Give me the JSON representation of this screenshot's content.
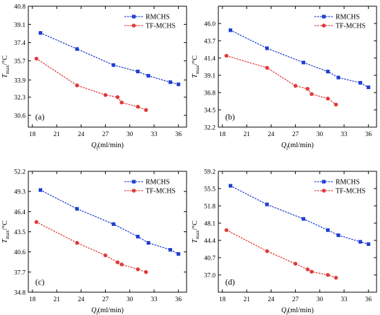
{
  "colors": {
    "rmchs": "#1f3fd1",
    "tf": "#e03a3a",
    "axis": "#000000"
  },
  "chart_data": [
    {
      "type": "line",
      "panel_label": "(a)",
      "xlabel_main": "Q",
      "xlabel_sub": "f",
      "xlabel_unit": "(ml/min)",
      "ylabel_main": "T",
      "ylabel_sub": "max",
      "ylabel_unit": "/°C",
      "xlim": [
        17.5,
        37
      ],
      "ylim": [
        29.5,
        40.8
      ],
      "xticks": [
        18,
        21,
        24,
        27,
        30,
        33,
        36
      ],
      "yticks": [
        30.6,
        32.3,
        33.9,
        35.7,
        37.4,
        39.1,
        40.8
      ],
      "ytick_labels": [
        "30.6",
        "32.3",
        "33.9",
        "35.7",
        "37.4",
        "39.1",
        "40.8"
      ],
      "legend_position": "top-right",
      "series": [
        {
          "name": "RMCHS",
          "color": "#1f3fd1",
          "marker": "square",
          "x": [
            19,
            23.5,
            28,
            31,
            32.3,
            35,
            36
          ],
          "y": [
            38.3,
            36.8,
            35.3,
            34.7,
            34.3,
            33.7,
            33.5
          ]
        },
        {
          "name": "TF-MCHS",
          "color": "#e03a3a",
          "marker": "circle",
          "x": [
            18.5,
            23.5,
            27,
            28.5,
            29,
            31,
            32
          ],
          "y": [
            35.9,
            33.4,
            32.5,
            32.3,
            31.8,
            31.4,
            31.1
          ]
        }
      ]
    },
    {
      "type": "line",
      "panel_label": "(b)",
      "xlabel_main": "Q",
      "xlabel_sub": "f",
      "xlabel_unit": "(ml/min)",
      "ylabel_main": "T",
      "ylabel_sub": "max",
      "ylabel_unit": "/°C",
      "xlim": [
        17.5,
        37
      ],
      "ylim": [
        32.2,
        48.3
      ],
      "xticks": [
        18,
        21,
        24,
        27,
        30,
        33,
        36
      ],
      "yticks": [
        32.2,
        34.5,
        36.8,
        39.1,
        41.4,
        43.7,
        46.0
      ],
      "ytick_labels": [
        "32.2",
        "34.5",
        "36.8",
        "39.1",
        "41.4",
        "43.7",
        "46.0"
      ],
      "legend_position": "top-right",
      "series": [
        {
          "name": "RMCHS",
          "color": "#1f3fd1",
          "marker": "square",
          "x": [
            19,
            23.5,
            28,
            31,
            32.3,
            35,
            36
          ],
          "y": [
            45.1,
            42.7,
            40.8,
            39.6,
            38.8,
            38.1,
            37.5
          ]
        },
        {
          "name": "TF-MCHS",
          "color": "#e03a3a",
          "marker": "circle",
          "x": [
            18.5,
            23.5,
            27,
            28.5,
            29,
            31,
            32
          ],
          "y": [
            41.7,
            40.1,
            37.7,
            37.3,
            36.6,
            36.0,
            35.2
          ]
        }
      ]
    },
    {
      "type": "line",
      "panel_label": "(c)",
      "xlabel_main": "Q",
      "xlabel_sub": "f",
      "xlabel_unit": "(ml/min)",
      "ylabel_main": "T",
      "ylabel_sub": "max",
      "ylabel_unit": "/°C",
      "xlim": [
        17.5,
        37
      ],
      "ylim": [
        34.8,
        52.2
      ],
      "xticks": [
        18,
        21,
        24,
        27,
        30,
        33,
        36
      ],
      "yticks": [
        34.8,
        37.7,
        40.6,
        43.5,
        46.4,
        49.3,
        52.2
      ],
      "ytick_labels": [
        "34.8",
        "37.7",
        "40.6",
        "43.5",
        "46.4",
        "49.3",
        "52.2"
      ],
      "legend_position": "top-right",
      "series": [
        {
          "name": "RMCHS",
          "color": "#1f3fd1",
          "marker": "square",
          "x": [
            19,
            23.5,
            28,
            31,
            32.3,
            35,
            36
          ],
          "y": [
            49.5,
            46.8,
            44.6,
            42.8,
            41.9,
            40.9,
            40.3
          ]
        },
        {
          "name": "TF-MCHS",
          "color": "#e03a3a",
          "marker": "circle",
          "x": [
            18.5,
            23.5,
            27,
            28.5,
            29,
            31,
            32
          ],
          "y": [
            44.9,
            41.9,
            40.1,
            39.1,
            38.8,
            38.1,
            37.7
          ]
        }
      ]
    },
    {
      "type": "line",
      "panel_label": "(d)",
      "xlabel_main": "Q",
      "xlabel_sub": "f",
      "xlabel_unit": "(ml/min)",
      "ylabel_main": "T",
      "ylabel_sub": "max",
      "ylabel_unit": "/°C",
      "xlim": [
        17.5,
        37
      ],
      "ylim": [
        33.3,
        59.2
      ],
      "xticks": [
        18,
        21,
        24,
        27,
        30,
        33,
        36
      ],
      "yticks": [
        37.0,
        40.7,
        44.4,
        48.1,
        51.8,
        55.5,
        59.2
      ],
      "ytick_labels": [
        "37.0",
        "40.7",
        "44.4",
        "48.1",
        "51.8",
        "55.5",
        "59.2"
      ],
      "legend_position": "top-right",
      "series": [
        {
          "name": "RMCHS",
          "color": "#1f3fd1",
          "marker": "square",
          "x": [
            19,
            23.5,
            28,
            31,
            32.3,
            35,
            36
          ],
          "y": [
            56.1,
            52.1,
            49.0,
            46.6,
            45.5,
            44.1,
            43.6
          ]
        },
        {
          "name": "TF-MCHS",
          "color": "#e03a3a",
          "marker": "circle",
          "x": [
            18.5,
            23.5,
            27,
            28.5,
            29,
            31,
            32
          ],
          "y": [
            46.6,
            42.1,
            39.4,
            38.2,
            37.7,
            37.0,
            36.4
          ]
        }
      ]
    }
  ]
}
